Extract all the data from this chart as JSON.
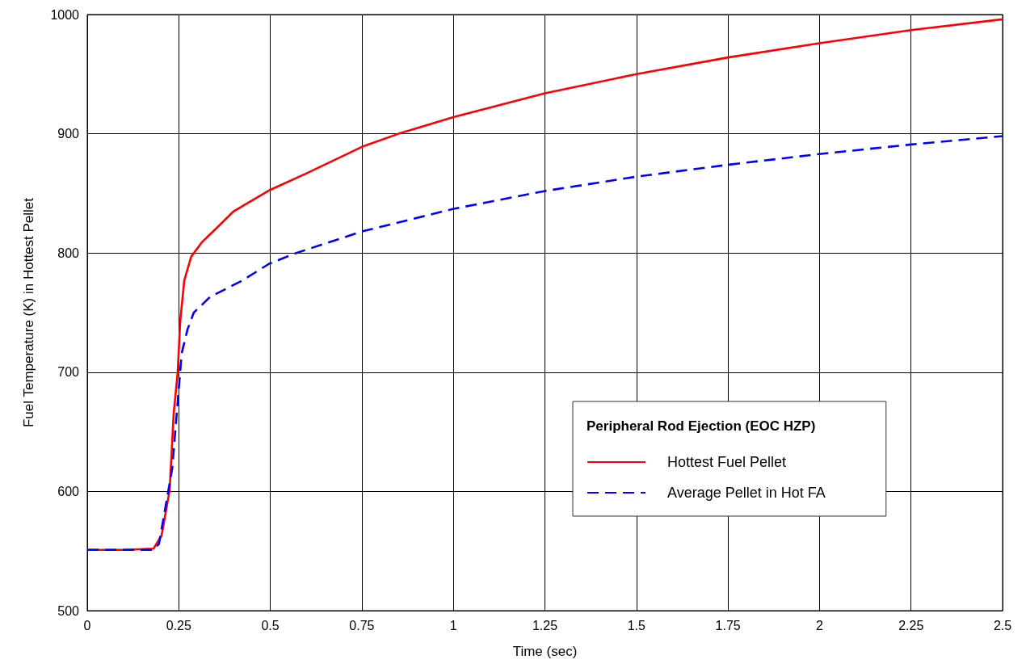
{
  "chart_data": {
    "type": "line",
    "xlabel": "Time (sec)",
    "ylabel": "Fuel Temperature (K) in Hottest Pellet",
    "legend_title": "Peripheral Rod Ejection (EOC HZP)",
    "xlim": [
      0,
      2.5
    ],
    "xticks": [
      0,
      0.25,
      0.5,
      0.75,
      1,
      1.25,
      1.5,
      1.75,
      2,
      2.25,
      2.5
    ],
    "ylim": [
      500,
      1000
    ],
    "yticks": [
      500,
      600,
      700,
      800,
      900,
      1000
    ],
    "grid": true,
    "legend": "bottom right",
    "marker": "none",
    "series": [
      {
        "name": "Hottest Fuel Pellet",
        "color": "#ff0000",
        "line_style": "solid",
        "x": [
          0,
          0.1,
          0.181,
          0.203,
          0.225,
          0.236,
          0.247,
          0.254,
          0.265,
          0.284,
          0.313,
          0.357,
          0.4,
          0.5,
          0.6,
          0.75,
          0.85,
          1,
          1.25,
          1.5,
          1.75,
          2,
          2.25,
          2.5
        ],
        "values": [
          551,
          551,
          552,
          563,
          601,
          665,
          700,
          743,
          777,
          797,
          809,
          822,
          835,
          853,
          867,
          889,
          900,
          914,
          934,
          950,
          964,
          976,
          987,
          996
        ]
      },
      {
        "name": "Average Pellet in Hot FA",
        "color": "#0000ff",
        "line_style": "dashed",
        "x": [
          0,
          0.1,
          0.18,
          0.196,
          0.232,
          0.247,
          0.258,
          0.274,
          0.291,
          0.335,
          0.424,
          0.497,
          0.571,
          0.75,
          1,
          1.25,
          1.5,
          1.75,
          2,
          2.25,
          2.5
        ],
        "values": [
          551,
          551,
          551,
          556,
          619,
          675,
          716,
          736,
          750,
          763,
          777,
          791,
          800,
          818,
          837,
          852,
          864,
          874,
          883,
          891,
          898
        ]
      }
    ]
  }
}
